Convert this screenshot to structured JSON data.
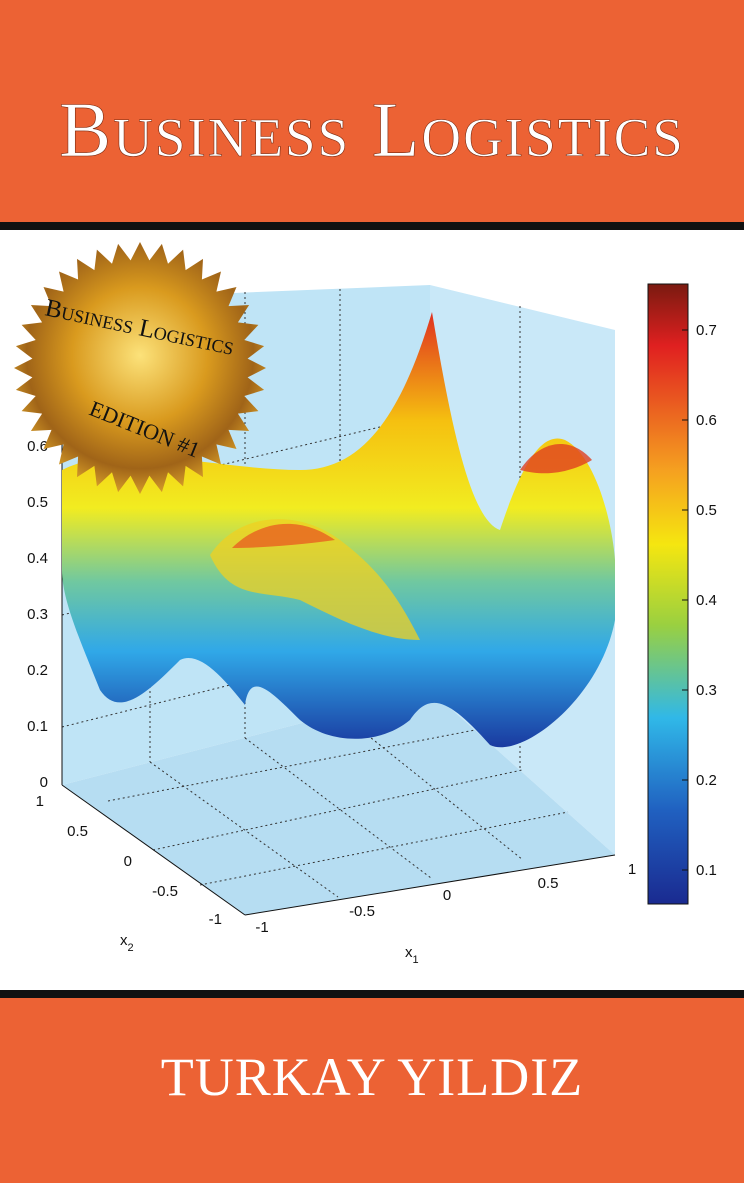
{
  "header": {
    "title": "Business Logistics"
  },
  "seal": {
    "title": "Business Logistics",
    "edition": "Edition #1"
  },
  "plot": {
    "z_ticks": [
      "0",
      "0.1",
      "0.2",
      "0.3",
      "0.4",
      "0.5",
      "0.6"
    ],
    "x1_ticks": [
      "-1",
      "-0.5",
      "0",
      "0.5",
      "1"
    ],
    "x2_ticks": [
      "1",
      "0.5",
      "0",
      "-0.5",
      "-1"
    ],
    "x1_label": {
      "symbol": "x",
      "subscript": "1"
    },
    "x2_label": {
      "symbol": "x",
      "subscript": "2"
    },
    "colorbar_ticks": [
      "0.7",
      "0.6",
      "0.5",
      "0.4",
      "0.3",
      "0.2",
      "0.1"
    ]
  },
  "author": "Turkay Yildiz"
}
